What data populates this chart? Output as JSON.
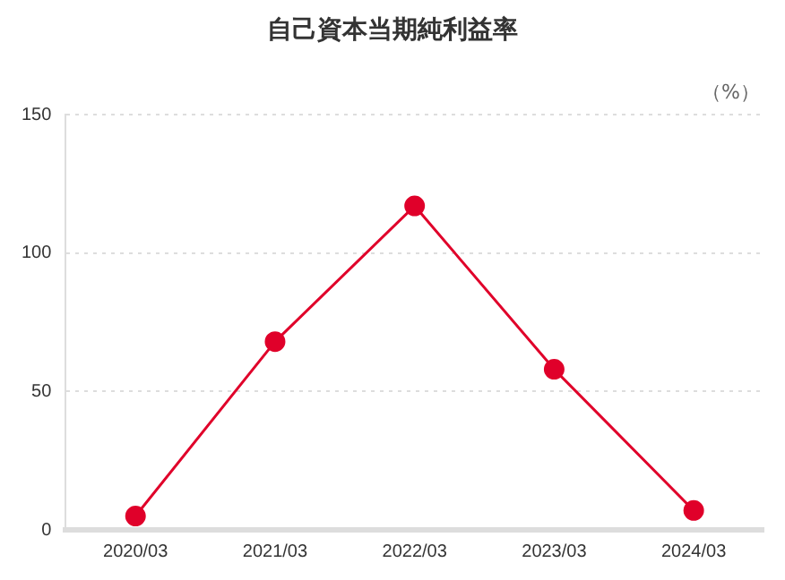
{
  "chart_data": {
    "type": "line",
    "title": "自己資本当期純利益率",
    "ylabel": "（%）",
    "categories": [
      "2020/03",
      "2021/03",
      "2022/03",
      "2023/03",
      "2024/03"
    ],
    "series": [
      {
        "color": "#e0002a",
        "values": [
          5,
          68,
          117,
          58,
          7
        ]
      }
    ],
    "ylim": [
      0,
      150
    ],
    "yticks": [
      0,
      50,
      100,
      150
    ],
    "grid": "y",
    "marker": "circle",
    "line_style": "solid",
    "legend": false
  }
}
